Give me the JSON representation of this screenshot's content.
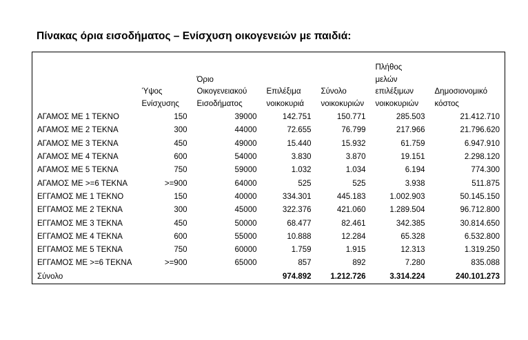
{
  "header": {
    "title": "Πίνακας όρια εισοδήματος – Ενίσχυση οικογενειών με παιδιά:"
  },
  "table": {
    "columns": [
      "Ύψος Ενίσχυσης",
      "Όριο Οικογενειακού Εισοδήματος",
      "Επιλέξιμα νοικοκυριά",
      "Σύνολο νοικοκυριών",
      "Πλήθος μελών επιλέξιμων νοικοκυριών",
      "Δημοσιονομικό κόστος"
    ],
    "rows": [
      [
        "ΑΓΑΜΟΣ ΜΕ 1 ΤΕΚΝΟ",
        "150",
        "39000",
        "142.751",
        "150.771",
        "285.503",
        "21.412.710"
      ],
      [
        "ΑΓΑΜΟΣ ΜΕ 2 ΤΕΚΝΑ",
        "300",
        "44000",
        "72.655",
        "76.799",
        "217.966",
        "21.796.620"
      ],
      [
        "ΑΓΑΜΟΣ ΜΕ 3 ΤΕΚΝΑ",
        "450",
        "49000",
        "15.440",
        "15.932",
        "61.759",
        "6.947.910"
      ],
      [
        "ΑΓΑΜΟΣ ΜΕ 4 ΤΕΚΝΑ",
        "600",
        "54000",
        "3.830",
        "3.870",
        "19.151",
        "2.298.120"
      ],
      [
        "ΑΓΑΜΟΣ ΜΕ 5 ΤΕΚΝΑ",
        "750",
        "59000",
        "1.032",
        "1.034",
        "6.194",
        "774.300"
      ],
      [
        "ΑΓΑΜΟΣ ΜΕ >=6 ΤΕΚΝΑ",
        ">=900",
        "64000",
        "525",
        "525",
        "3.938",
        "511.875"
      ],
      [
        "ΕΓΓΑΜΟΣ ΜΕ 1 ΤΕΚΝΟ",
        "150",
        "40000",
        "334.301",
        "445.183",
        "1.002.903",
        "50.145.150"
      ],
      [
        "ΕΓΓΑΜΟΣ ΜΕ 2 ΤΕΚΝΑ",
        "300",
        "45000",
        "322.376",
        "421.060",
        "1.289.504",
        "96.712.800"
      ],
      [
        "ΕΓΓΑΜΟΣ ΜΕ 3 ΤΕΚΝΑ",
        "450",
        "50000",
        "68.477",
        "82.461",
        "342.385",
        "30.814.650"
      ],
      [
        "ΕΓΓΑΜΟΣ ΜΕ 4 ΤΕΚΝΑ",
        "600",
        "55000",
        "10.888",
        "12.284",
        "65.328",
        "6.532.800"
      ],
      [
        "ΕΓΓΑΜΟΣ ΜΕ 5 ΤΕΚΝΑ",
        "750",
        "60000",
        "1.759",
        "1.915",
        "12.313",
        "1.319.250"
      ],
      [
        "ΕΓΓΑΜΟΣ ΜΕ >=6 ΤΕΚΝΑ",
        ">=900",
        "65000",
        "857",
        "892",
        "7.280",
        "835.088"
      ]
    ],
    "total": {
      "label": "Σύνολο",
      "values": [
        "974.892",
        "1.212.726",
        "3.314.224",
        "240.101.273"
      ]
    }
  }
}
